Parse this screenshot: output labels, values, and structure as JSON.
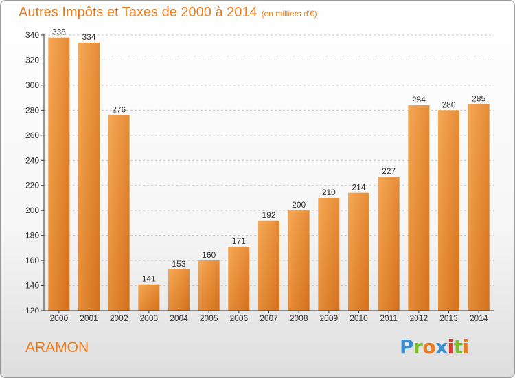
{
  "title": "Autres Impôts et Taxes de 2000 à 2014",
  "subtitle": "(en milliers d'€)",
  "commune": "ARAMON",
  "logo": {
    "text": "Proxiti",
    "letters": [
      "P",
      "r",
      "o",
      "x",
      "i",
      "t",
      "i"
    ],
    "colors": [
      "#3a8fd1",
      "#7bbf2a",
      "#ec7c1b",
      "#3a8fd1",
      "#d93a2b",
      "#7bbf2a",
      "#ec7c1b"
    ]
  },
  "colors": {
    "bar_light": "#f6a855",
    "bar_dark": "#d4701c",
    "accent": "#ec7c1b",
    "grid": "#c8c8c8",
    "axis": "#333333"
  },
  "chart_data": {
    "type": "bar",
    "categories": [
      "2000",
      "2001",
      "2002",
      "2003",
      "2004",
      "2005",
      "2006",
      "2007",
      "2008",
      "2009",
      "2010",
      "2011",
      "2012",
      "2013",
      "2014"
    ],
    "values": [
      338,
      334,
      276,
      141,
      153,
      160,
      171,
      192,
      200,
      210,
      214,
      227,
      284,
      280,
      285
    ],
    "title": "Autres Impôts et Taxes de 2000 à 2014",
    "subtitle": "(en milliers d'€)",
    "ylim": [
      120,
      340
    ],
    "yticks": [
      120,
      140,
      160,
      180,
      200,
      220,
      240,
      260,
      280,
      300,
      320,
      340
    ],
    "grid": true,
    "grid_style": "dashed horizontal",
    "legend": "none"
  }
}
